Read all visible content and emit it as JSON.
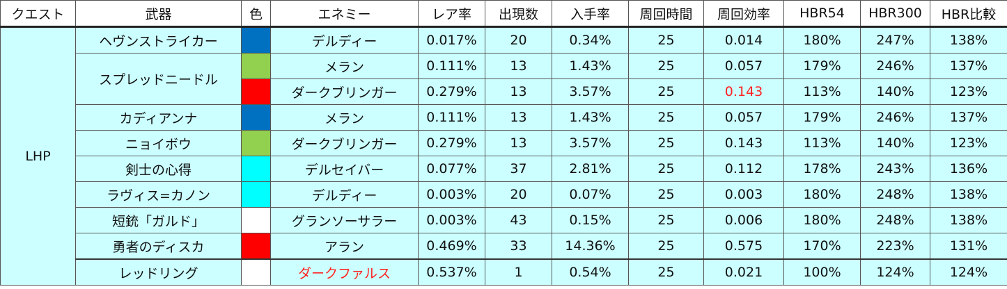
{
  "headers": [
    "クエスト",
    "武器",
    "色",
    "エネミー",
    "レア率",
    "出現数",
    "入手率",
    "周回時間",
    "周回効率",
    "HBR54",
    "HBR300",
    "HBR比較"
  ],
  "quest": "LHP",
  "colors": {
    "blue": "#0070c0",
    "green": "#92d050",
    "red": "#ff0000",
    "cyan": "#00ffff",
    "white": "#ffffff",
    "highlight_text": "#ff2222",
    "row_bg": "#ccffff"
  },
  "rows": [
    {
      "weapon": "ヘヴンストライカー",
      "color": "blue",
      "enemy": "デルディー",
      "rare": "0.017%",
      "count": "20",
      "rate": "0.34%",
      "time": "25",
      "eff": "0.014",
      "hbr54": "180%",
      "hbr300": "247%",
      "ratio": "138%"
    },
    {
      "weapon": "スプレッドニードル",
      "color": "green",
      "enemy": "メラン",
      "rare": "0.111%",
      "count": "13",
      "rate": "1.43%",
      "time": "25",
      "eff": "0.057",
      "hbr54": "179%",
      "hbr300": "246%",
      "ratio": "137%"
    },
    {
      "weapon": "",
      "color": "red",
      "enemy": "ダークブリンガー",
      "rare": "0.279%",
      "count": "13",
      "rate": "3.57%",
      "time": "25",
      "eff": "0.143",
      "hbr54": "113%",
      "hbr300": "140%",
      "ratio": "123%"
    },
    {
      "weapon": "カディアンナ",
      "color": "blue",
      "enemy": "メラン",
      "rare": "0.111%",
      "count": "13",
      "rate": "1.43%",
      "time": "25",
      "eff": "0.057",
      "hbr54": "179%",
      "hbr300": "246%",
      "ratio": "137%"
    },
    {
      "weapon": "ニョイボウ",
      "color": "green",
      "enemy": "ダークブリンガー",
      "rare": "0.279%",
      "count": "13",
      "rate": "3.57%",
      "time": "25",
      "eff": "0.143",
      "hbr54": "113%",
      "hbr300": "140%",
      "ratio": "123%"
    },
    {
      "weapon": "剣士の心得",
      "color": "cyan",
      "enemy": "デルセイバー",
      "rare": "0.077%",
      "count": "37",
      "rate": "2.81%",
      "time": "25",
      "eff": "0.112",
      "hbr54": "178%",
      "hbr300": "243%",
      "ratio": "136%"
    },
    {
      "weapon": "ラヴィス=カノン",
      "color": "cyan",
      "enemy": "デルディー",
      "rare": "0.003%",
      "count": "20",
      "rate": "0.07%",
      "time": "25",
      "eff": "0.003",
      "hbr54": "180%",
      "hbr300": "248%",
      "ratio": "138%"
    },
    {
      "weapon": "短銃「ガルド」",
      "color": "white",
      "enemy": "グランソーサラー",
      "rare": "0.003%",
      "count": "43",
      "rate": "0.15%",
      "time": "25",
      "eff": "0.006",
      "hbr54": "180%",
      "hbr300": "248%",
      "ratio": "138%"
    },
    {
      "weapon": "勇者のディスカ",
      "color": "red",
      "enemy": "アラン",
      "rare": "0.469%",
      "count": "33",
      "rate": "14.36%",
      "time": "25",
      "eff": "0.575",
      "hbr54": "170%",
      "hbr300": "223%",
      "ratio": "131%"
    },
    {
      "weapon": "レッドリング",
      "color": "white",
      "enemy": "ダークファルス",
      "rare": "0.537%",
      "count": "1",
      "rate": "0.54%",
      "time": "25",
      "eff": "0.021",
      "hbr54": "100%",
      "hbr300": "124%",
      "ratio": "124%"
    }
  ]
}
